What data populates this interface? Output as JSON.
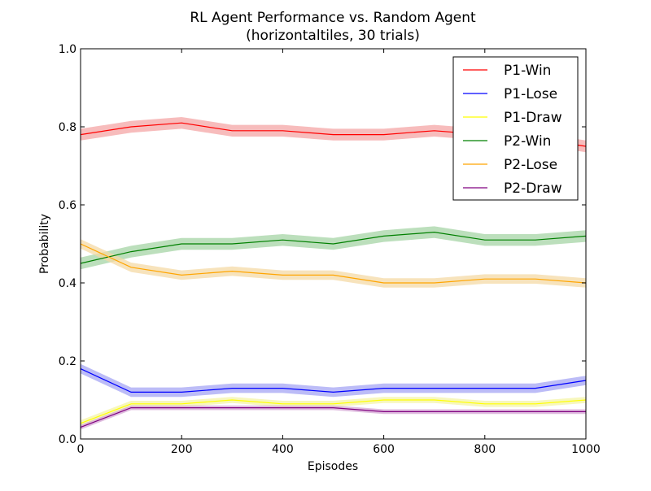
{
  "chart_data": {
    "type": "line",
    "title": "RL Agent Performance vs. Random Agent",
    "subtitle": "(horizontaltiles, 30 trials)",
    "xlabel": "Episodes",
    "ylabel": "Probability",
    "xlim": [
      0,
      1000
    ],
    "ylim": [
      0.0,
      1.0
    ],
    "x_ticks": [
      "0",
      "200",
      "400",
      "600",
      "800",
      "1000"
    ],
    "y_ticks": [
      "0.0",
      "0.2",
      "0.4",
      "0.6",
      "0.8",
      "1.0"
    ],
    "grid": false,
    "legend_position": "top-right",
    "x": [
      0,
      100,
      200,
      300,
      400,
      500,
      600,
      700,
      800,
      900,
      1000
    ],
    "series": [
      {
        "name": "P1-Win",
        "color": "#ff0000",
        "band": "#f4a6a6",
        "values": [
          0.78,
          0.8,
          0.81,
          0.79,
          0.79,
          0.78,
          0.78,
          0.79,
          0.78,
          0.77,
          0.75
        ],
        "ci": [
          0.015,
          0.015,
          0.015,
          0.015,
          0.015,
          0.015,
          0.015,
          0.015,
          0.015,
          0.015,
          0.015
        ]
      },
      {
        "name": "P1-Lose",
        "color": "#0000ff",
        "band": "#a6a6f4",
        "values": [
          0.18,
          0.12,
          0.12,
          0.13,
          0.13,
          0.12,
          0.13,
          0.13,
          0.13,
          0.13,
          0.15
        ],
        "ci": [
          0.012,
          0.012,
          0.012,
          0.012,
          0.012,
          0.012,
          0.012,
          0.012,
          0.012,
          0.012,
          0.012
        ]
      },
      {
        "name": "P1-Draw",
        "color": "#ffff00",
        "band": "#f4f4a6",
        "values": [
          0.04,
          0.09,
          0.09,
          0.1,
          0.09,
          0.09,
          0.1,
          0.1,
          0.09,
          0.09,
          0.1
        ],
        "ci": [
          0.008,
          0.008,
          0.008,
          0.008,
          0.008,
          0.008,
          0.008,
          0.008,
          0.008,
          0.008,
          0.008
        ]
      },
      {
        "name": "P2-Win",
        "color": "#008000",
        "band": "#a6d4a6",
        "values": [
          0.45,
          0.48,
          0.5,
          0.5,
          0.51,
          0.5,
          0.52,
          0.53,
          0.51,
          0.51,
          0.52
        ],
        "ci": [
          0.015,
          0.015,
          0.015,
          0.015,
          0.015,
          0.015,
          0.015,
          0.015,
          0.015,
          0.015,
          0.015
        ]
      },
      {
        "name": "P2-Lose",
        "color": "#ffa500",
        "band": "#f4d9a6",
        "values": [
          0.5,
          0.44,
          0.42,
          0.43,
          0.42,
          0.42,
          0.4,
          0.4,
          0.41,
          0.41,
          0.4
        ],
        "ci": [
          0.012,
          0.012,
          0.012,
          0.012,
          0.012,
          0.012,
          0.012,
          0.012,
          0.012,
          0.012,
          0.012
        ]
      },
      {
        "name": "P2-Draw",
        "color": "#800080",
        "band": "#d4a6d4",
        "values": [
          0.03,
          0.08,
          0.08,
          0.08,
          0.08,
          0.08,
          0.07,
          0.07,
          0.07,
          0.07,
          0.07
        ],
        "ci": [
          0.006,
          0.006,
          0.006,
          0.006,
          0.006,
          0.006,
          0.006,
          0.006,
          0.006,
          0.006,
          0.006
        ]
      }
    ]
  }
}
